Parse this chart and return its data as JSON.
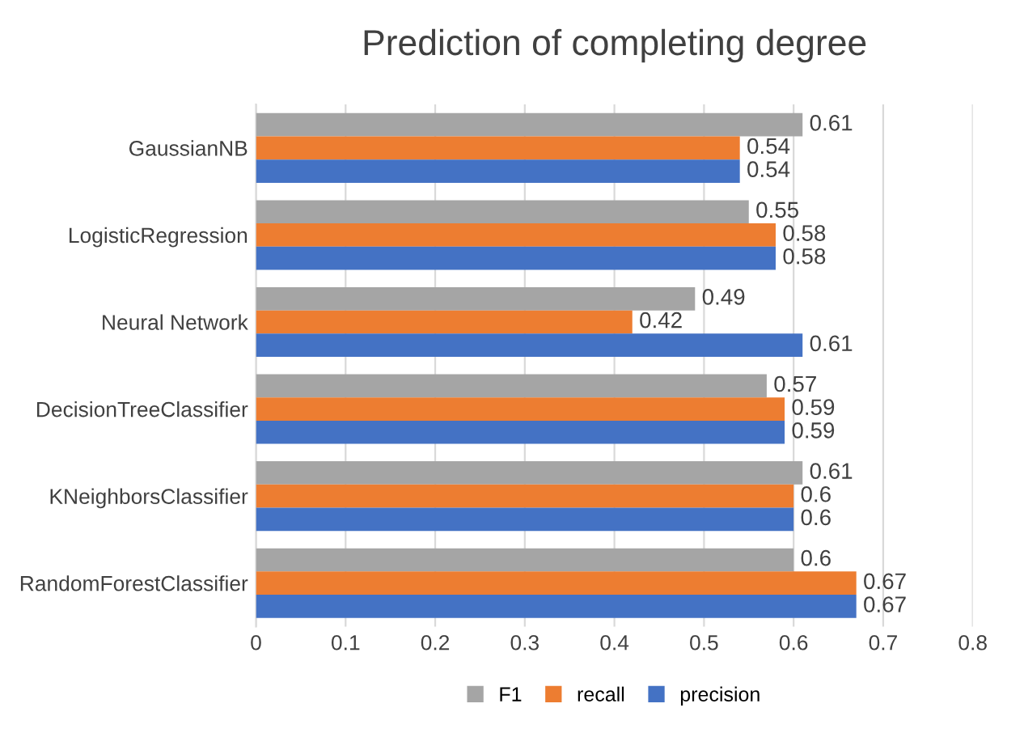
{
  "chart_data": {
    "type": "bar",
    "orientation": "horizontal",
    "title": "Prediction of completing degree",
    "categories": [
      "GaussianNB",
      "LogisticRegression",
      "Neural Network",
      "DecisionTreeClassifier",
      "KNeighborsClassifier",
      "RandomForestClassifier"
    ],
    "series": [
      {
        "name": "F1",
        "color": "#a5a5a5",
        "values": [
          0.61,
          0.55,
          0.49,
          0.57,
          0.61,
          0.6
        ]
      },
      {
        "name": "recall",
        "color": "#ed7d31",
        "values": [
          0.54,
          0.58,
          0.42,
          0.59,
          0.6,
          0.67
        ]
      },
      {
        "name": "precision",
        "color": "#4472c4",
        "values": [
          0.54,
          0.58,
          0.61,
          0.59,
          0.6,
          0.67
        ]
      }
    ],
    "xlim": [
      0,
      0.8
    ],
    "xticks": [
      0,
      0.1,
      0.2,
      0.3,
      0.4,
      0.5,
      0.6,
      0.7,
      0.8
    ],
    "grid": "x",
    "legend": "bottom",
    "data_labels": true
  }
}
